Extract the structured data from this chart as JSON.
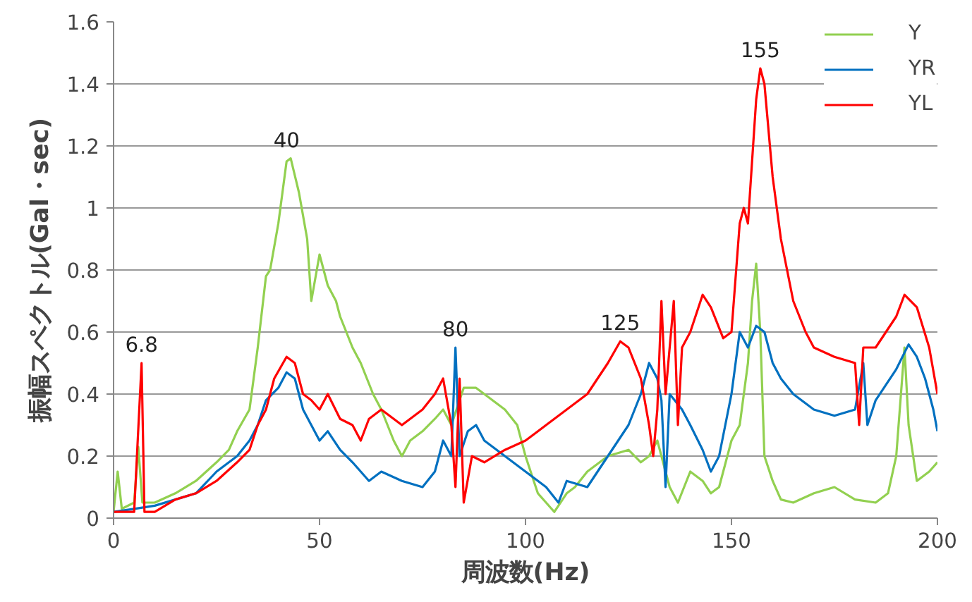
{
  "chart_data": {
    "type": "line",
    "xlabel": "周波数(Hz)",
    "ylabel": "振幅スペクトル(Gal・sec)",
    "xlim": [
      0,
      200
    ],
    "xticks": [
      0,
      50,
      100,
      150,
      200
    ],
    "ylim": [
      0,
      1.6
    ],
    "yticks": [
      0,
      0.2,
      0.4,
      0.6,
      0.8,
      1,
      1.2,
      1.4,
      1.6
    ],
    "grid": "y",
    "legend": "top right",
    "marker": "none",
    "line_style": "solid",
    "annotations": [
      {
        "text": "6.8",
        "x": 6.8,
        "y": 0.5
      },
      {
        "text": "40",
        "x": 42,
        "y": 1.16
      },
      {
        "text": "80",
        "x": 83,
        "y": 0.55
      },
      {
        "text": "125",
        "x": 123,
        "y": 0.57
      },
      {
        "text": "155",
        "x": 157,
        "y": 1.45
      }
    ],
    "series": [
      {
        "name": "Y",
        "color": "#92d050",
        "x": [
          0,
          1,
          2,
          5,
          6,
          7,
          10,
          15,
          20,
          25,
          28,
          30,
          33,
          35,
          37,
          38,
          40,
          42,
          43,
          45,
          47,
          48,
          50,
          52,
          54,
          55,
          58,
          60,
          63,
          65,
          68,
          70,
          72,
          75,
          78,
          80,
          82,
          84,
          85,
          88,
          90,
          95,
          98,
          100,
          103,
          105,
          107,
          110,
          112,
          115,
          120,
          125,
          128,
          130,
          132,
          135,
          137,
          140,
          143,
          145,
          147,
          150,
          152,
          154,
          155,
          156,
          157,
          158,
          160,
          162,
          165,
          170,
          175,
          180,
          185,
          188,
          190,
          192,
          193,
          195,
          198,
          200
        ],
        "values": [
          0.02,
          0.15,
          0.03,
          0.05,
          0.23,
          0.05,
          0.05,
          0.08,
          0.12,
          0.18,
          0.22,
          0.28,
          0.35,
          0.55,
          0.78,
          0.8,
          0.95,
          1.15,
          1.16,
          1.05,
          0.9,
          0.7,
          0.85,
          0.75,
          0.7,
          0.65,
          0.55,
          0.5,
          0.4,
          0.35,
          0.25,
          0.2,
          0.25,
          0.28,
          0.32,
          0.35,
          0.3,
          0.38,
          0.42,
          0.42,
          0.4,
          0.35,
          0.3,
          0.2,
          0.08,
          0.05,
          0.02,
          0.08,
          0.1,
          0.15,
          0.2,
          0.22,
          0.18,
          0.2,
          0.25,
          0.1,
          0.05,
          0.15,
          0.12,
          0.08,
          0.1,
          0.25,
          0.3,
          0.5,
          0.7,
          0.82,
          0.6,
          0.2,
          0.12,
          0.06,
          0.05,
          0.08,
          0.1,
          0.06,
          0.05,
          0.08,
          0.2,
          0.55,
          0.3,
          0.12,
          0.15,
          0.18
        ]
      },
      {
        "name": "YR",
        "color": "#0070c0",
        "x": [
          0,
          5,
          10,
          15,
          20,
          25,
          30,
          33,
          35,
          37,
          40,
          42,
          44,
          46,
          48,
          50,
          52,
          55,
          58,
          60,
          62,
          65,
          70,
          75,
          78,
          80,
          82,
          83,
          84,
          86,
          88,
          90,
          95,
          100,
          105,
          108,
          110,
          115,
          120,
          125,
          128,
          130,
          132,
          133,
          134,
          135,
          138,
          140,
          143,
          145,
          147,
          150,
          152,
          154,
          156,
          158,
          160,
          162,
          165,
          170,
          175,
          180,
          182,
          183,
          185,
          190,
          193,
          195,
          197,
          199,
          200
        ],
        "values": [
          0.02,
          0.03,
          0.04,
          0.06,
          0.08,
          0.15,
          0.2,
          0.25,
          0.3,
          0.38,
          0.42,
          0.47,
          0.45,
          0.35,
          0.3,
          0.25,
          0.28,
          0.22,
          0.18,
          0.15,
          0.12,
          0.15,
          0.12,
          0.1,
          0.15,
          0.25,
          0.2,
          0.55,
          0.2,
          0.28,
          0.3,
          0.25,
          0.2,
          0.15,
          0.1,
          0.05,
          0.12,
          0.1,
          0.2,
          0.3,
          0.4,
          0.5,
          0.45,
          0.38,
          0.1,
          0.4,
          0.35,
          0.3,
          0.22,
          0.15,
          0.2,
          0.4,
          0.6,
          0.55,
          0.62,
          0.6,
          0.5,
          0.45,
          0.4,
          0.35,
          0.33,
          0.35,
          0.5,
          0.3,
          0.38,
          0.48,
          0.56,
          0.52,
          0.45,
          0.35,
          0.28
        ]
      },
      {
        "name": "YL",
        "color": "#ff0000",
        "x": [
          0,
          5,
          6.8,
          7.5,
          10,
          15,
          20,
          25,
          30,
          33,
          35,
          37,
          39,
          42,
          44,
          46,
          48,
          50,
          52,
          55,
          58,
          60,
          62,
          65,
          70,
          75,
          78,
          80,
          82,
          83,
          84,
          85,
          87,
          90,
          95,
          100,
          105,
          110,
          115,
          120,
          123,
          125,
          128,
          130,
          131,
          132,
          133,
          134,
          136,
          137,
          138,
          140,
          143,
          145,
          148,
          150,
          152,
          153,
          154,
          156,
          157,
          158,
          160,
          162,
          165,
          168,
          170,
          175,
          180,
          181,
          182,
          185,
          190,
          192,
          195,
          198,
          200
        ],
        "values": [
          0.02,
          0.02,
          0.5,
          0.02,
          0.02,
          0.06,
          0.08,
          0.12,
          0.18,
          0.22,
          0.3,
          0.35,
          0.45,
          0.52,
          0.5,
          0.4,
          0.38,
          0.35,
          0.4,
          0.32,
          0.3,
          0.25,
          0.32,
          0.35,
          0.3,
          0.35,
          0.4,
          0.45,
          0.3,
          0.1,
          0.45,
          0.05,
          0.2,
          0.18,
          0.22,
          0.25,
          0.3,
          0.35,
          0.4,
          0.5,
          0.57,
          0.55,
          0.45,
          0.3,
          0.2,
          0.35,
          0.7,
          0.4,
          0.7,
          0.3,
          0.55,
          0.6,
          0.72,
          0.68,
          0.58,
          0.6,
          0.95,
          1.0,
          0.95,
          1.35,
          1.45,
          1.4,
          1.1,
          0.9,
          0.7,
          0.6,
          0.55,
          0.52,
          0.5,
          0.3,
          0.55,
          0.55,
          0.65,
          0.72,
          0.68,
          0.55,
          0.4
        ]
      }
    ]
  }
}
